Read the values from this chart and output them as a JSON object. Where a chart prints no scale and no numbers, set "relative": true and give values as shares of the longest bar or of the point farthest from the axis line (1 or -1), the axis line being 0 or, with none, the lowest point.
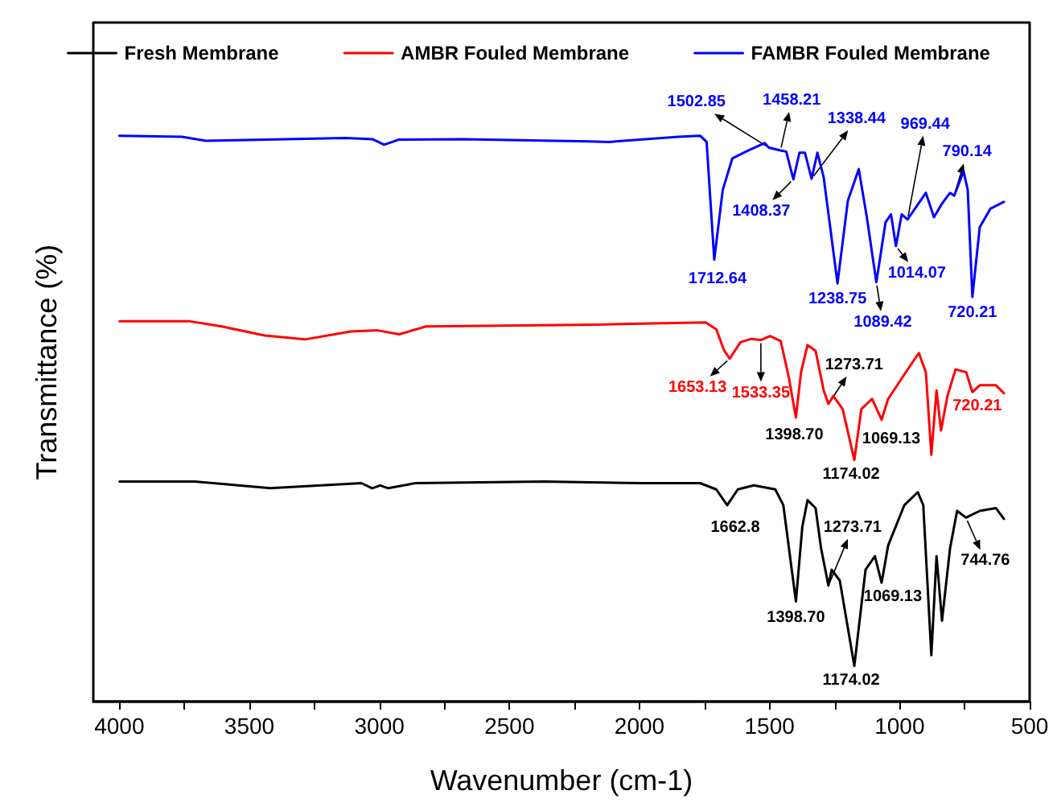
{
  "chart_data": {
    "type": "line",
    "xlabel": "Wavenumber (cm-1)",
    "ylabel": "Transmittance (%)",
    "relative": true,
    "xlim": [
      4100,
      500
    ],
    "xticks": [
      4000,
      {
        "value": 3750,
        "label": null
      },
      3500,
      {
        "value": 3250,
        "label": null
      },
      3000,
      {
        "value": 2750,
        "label": null
      },
      2500,
      {
        "value": 2250,
        "label": null
      },
      2000,
      {
        "value": 1750,
        "label": null
      },
      1500,
      {
        "value": 1250,
        "label": null
      },
      1000,
      {
        "value": 750,
        "label": null
      },
      500
    ],
    "legend": "top",
    "grid": false,
    "series": [
      {
        "name": "Fresh Membrane",
        "color": "#000000",
        "x": [
          3999,
          3710,
          3420,
          3069,
          3028,
          2997,
          2966,
          2862,
          2366,
          1994,
          1767,
          1705,
          1662.8,
          1622,
          1560,
          1478,
          1447,
          1398.7,
          1374,
          1354,
          1323,
          1302,
          1273.71,
          1261,
          1230,
          1174.02,
          1131,
          1095,
          1069.13,
          1044,
          982,
          930,
          909,
          878,
          858,
          837,
          806,
          779,
          744.76,
          692,
          630,
          599
        ],
        "values": [
          0.389,
          0.389,
          0.377,
          0.386,
          0.377,
          0.382,
          0.377,
          0.386,
          0.389,
          0.386,
          0.386,
          0.375,
          0.347,
          0.375,
          0.382,
          0.375,
          0.347,
          0.177,
          0.309,
          0.356,
          0.342,
          0.271,
          0.205,
          0.233,
          0.214,
          0.063,
          0.233,
          0.257,
          0.21,
          0.276,
          0.347,
          0.37,
          0.347,
          0.082,
          0.257,
          0.143,
          0.271,
          0.337,
          0.325,
          0.337,
          0.342,
          0.323
        ]
      },
      {
        "name": "AMBR Fouled Membrane",
        "color": "#ff0000",
        "x": [
          3999,
          3730,
          3606,
          3441,
          3286,
          3110,
          3007,
          2924,
          2821,
          2160,
          1994,
          1746,
          1705,
          1674,
          1653.13,
          1612,
          1571,
          1533.35,
          1498,
          1457,
          1426,
          1398.7,
          1379,
          1354,
          1323,
          1292,
          1273.71,
          1255,
          1219,
          1174.02,
          1147,
          1106,
          1069.13,
          1044,
          982,
          926,
          899,
          878,
          858,
          841,
          816,
          785,
          744,
          720.21,
          692,
          630,
          599
        ],
        "values": [
          0.672,
          0.672,
          0.663,
          0.647,
          0.64,
          0.654,
          0.656,
          0.649,
          0.663,
          0.666,
          0.668,
          0.67,
          0.658,
          0.62,
          0.606,
          0.635,
          0.641,
          0.639,
          0.646,
          0.637,
          0.573,
          0.502,
          0.582,
          0.63,
          0.62,
          0.55,
          0.526,
          0.54,
          0.517,
          0.427,
          0.517,
          0.535,
          0.498,
          0.535,
          0.578,
          0.616,
          0.582,
          0.436,
          0.55,
          0.479,
          0.54,
          0.587,
          0.582,
          0.547,
          0.559,
          0.559,
          0.545
        ]
      },
      {
        "name": "FAMBR Fouled Membrane",
        "color": "#0000ff",
        "x": [
          4000,
          3759,
          3667,
          3434,
          3129,
          3027,
          2982,
          2926,
          2682,
          2193,
          2118,
          1850,
          1767,
          1742,
          1712.64,
          1680,
          1643,
          1581,
          1519,
          1502.85,
          1458.21,
          1436,
          1408.37,
          1385,
          1364,
          1338.44,
          1316,
          1292,
          1238.75,
          1199,
          1157,
          1126,
          1089.42,
          1054,
          1033,
          1014.07,
          992,
          969.44,
          899,
          868,
          837,
          806,
          790.14,
          754,
          738,
          720.21,
          692,
          651,
          599
        ],
        "values": [
          1.0,
          0.998,
          0.991,
          0.993,
          0.996,
          0.994,
          0.984,
          0.993,
          0.994,
          0.99,
          0.989,
          0.998,
          1.0,
          0.989,
          0.781,
          0.904,
          0.96,
          0.974,
          0.987,
          0.979,
          0.974,
          0.972,
          0.923,
          0.97,
          0.97,
          0.924,
          0.97,
          0.927,
          0.739,
          0.885,
          0.941,
          0.856,
          0.741,
          0.847,
          0.861,
          0.805,
          0.861,
          0.852,
          0.899,
          0.856,
          0.88,
          0.899,
          0.894,
          0.937,
          0.904,
          0.715,
          0.838,
          0.871,
          0.883
        ]
      }
    ],
    "annotations": [
      {
        "text": "1712.64",
        "x": 1712.64,
        "y": 0.781
      },
      {
        "text": "1502.85",
        "x": 1502.85,
        "y": 0.979
      },
      {
        "text": "1458.21",
        "x": 1458.21,
        "y": 0.974
      },
      {
        "text": "1408.37",
        "x": 1408.37,
        "y": 0.923
      },
      {
        "text": "1338.44",
        "x": 1338.44,
        "y": 0.924
      },
      {
        "text": "1238.75",
        "x": 1238.75,
        "y": 0.739
      },
      {
        "text": "1089.42",
        "x": 1089.42,
        "y": 0.741
      },
      {
        "text": "1014.07",
        "x": 1014.07,
        "y": 0.805
      },
      {
        "text": "969.44",
        "x": 969.44,
        "y": 0.852
      },
      {
        "text": "790.14",
        "x": 790.14,
        "y": 0.894
      },
      {
        "text": "720.21",
        "x": 720.21,
        "y": 0.715
      },
      {
        "text": "1653.13",
        "x": 1653.13,
        "y": 0.606
      },
      {
        "text": "1533.35",
        "x": 1533.35,
        "y": 0.639
      },
      {
        "text": "1273.71",
        "x": 1273.71,
        "y": 0.526
      },
      {
        "text": "1398.70",
        "x": 1398.7,
        "y": 0.502
      },
      {
        "text": "1174.02",
        "x": 1174.02,
        "y": 0.427
      },
      {
        "text": "1069.13",
        "x": 1069.13,
        "y": 0.498
      },
      {
        "text": "720.21",
        "x": 720.21,
        "y": 0.547
      },
      {
        "text": "1662.8",
        "x": 1662.8,
        "y": 0.347
      },
      {
        "text": "1398.70",
        "x": 1398.7,
        "y": 0.177
      },
      {
        "text": "1273.71",
        "x": 1273.71,
        "y": 0.205
      },
      {
        "text": "1069.13",
        "x": 1069.13,
        "y": 0.21
      },
      {
        "text": "1174.02",
        "x": 1174.02,
        "y": 0.063
      },
      {
        "text": "744.76",
        "x": 744.76,
        "y": 0.325
      }
    ]
  }
}
